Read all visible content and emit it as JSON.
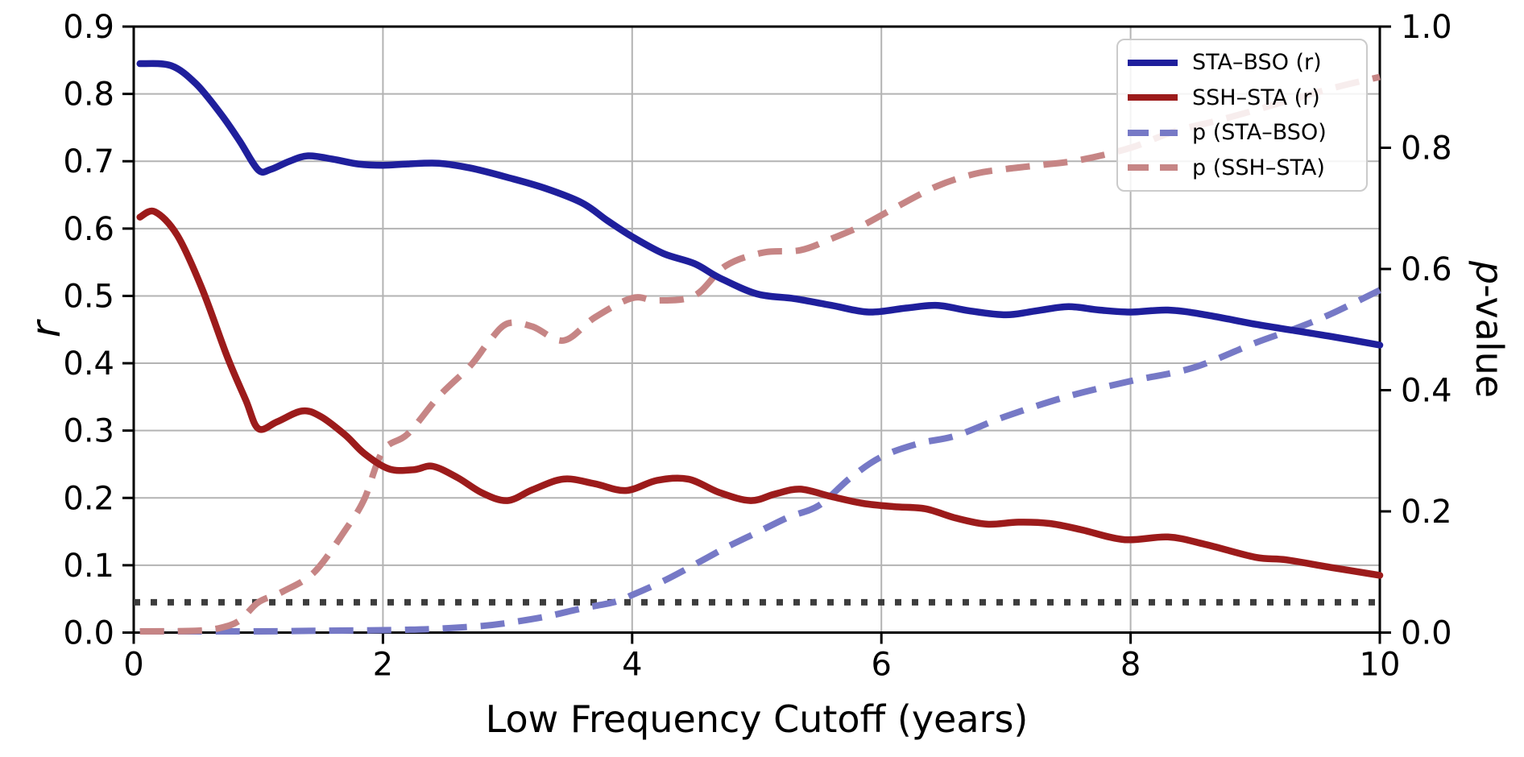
{
  "figure": {
    "xlabel": "Low Frequency Cutoff (years)",
    "ylabel_left": "r",
    "ylabel_right_prefix": "p",
    "ylabel_right_suffix": "-value",
    "background": "#ffffff"
  },
  "legend": {
    "position": "upper right",
    "items": [
      {
        "label": "STA–BSO (r)",
        "color": "#1f1f9c",
        "style": "solid"
      },
      {
        "label": "SSH–STA (r)",
        "color": "#9c1b1b",
        "style": "solid"
      },
      {
        "label": "p (STA–BSO)",
        "color": "#7679c6",
        "style": "dashed"
      },
      {
        "label": "p (SSH–STA)",
        "color": "#c68585",
        "style": "dashed"
      }
    ]
  },
  "chart_data": {
    "type": "line",
    "title": "",
    "xlabel": "Low Frequency Cutoff (years)",
    "ylabel_left": "r",
    "ylabel_right": "p-value",
    "xlim": [
      0,
      10
    ],
    "ylim_left": [
      0.0,
      0.9
    ],
    "ylim_right": [
      0.0,
      1.0
    ],
    "x_ticks": [
      0,
      2,
      4,
      6,
      8,
      10
    ],
    "x_tick_labels": [
      "0",
      "2",
      "4",
      "6",
      "8",
      "10"
    ],
    "y_ticks_left": [
      0.0,
      0.1,
      0.2,
      0.3,
      0.4,
      0.5,
      0.6,
      0.7,
      0.8,
      0.9
    ],
    "y_tick_labels_left": [
      "0.0",
      "0.1",
      "0.2",
      "0.3",
      "0.4",
      "0.5",
      "0.6",
      "0.7",
      "0.8",
      "0.9"
    ],
    "y_ticks_right": [
      0.0,
      0.2,
      0.4,
      0.6,
      0.8,
      1.0
    ],
    "y_tick_labels_right": [
      "0.0",
      "0.2",
      "0.4",
      "0.6",
      "0.8",
      "1.0"
    ],
    "grid": true,
    "grid_color": "#b3b3b3",
    "legend_position": "upper right",
    "threshold_line": {
      "axis": "right",
      "value": 0.05,
      "style": "dotted",
      "color": "#3d3d3d"
    },
    "series": [
      {
        "id": "p-sta-bso",
        "name": "p (STA–BSO)",
        "axis": "right",
        "style": "dashed",
        "color": "#7679c6",
        "points": [
          [
            0.05,
            0.002
          ],
          [
            0.5,
            0.002
          ],
          [
            1.0,
            0.002
          ],
          [
            1.5,
            0.003
          ],
          [
            2.0,
            0.004
          ],
          [
            2.4,
            0.006
          ],
          [
            2.8,
            0.011
          ],
          [
            3.0,
            0.016
          ],
          [
            3.3,
            0.026
          ],
          [
            3.6,
            0.04
          ],
          [
            3.85,
            0.05
          ],
          [
            4.0,
            0.062
          ],
          [
            4.25,
            0.085
          ],
          [
            4.5,
            0.112
          ],
          [
            4.75,
            0.14
          ],
          [
            5.0,
            0.165
          ],
          [
            5.25,
            0.19
          ],
          [
            5.5,
            0.21
          ],
          [
            5.75,
            0.255
          ],
          [
            6.0,
            0.29
          ],
          [
            6.3,
            0.312
          ],
          [
            6.6,
            0.325
          ],
          [
            7.0,
            0.357
          ],
          [
            7.5,
            0.39
          ],
          [
            8.0,
            0.415
          ],
          [
            8.5,
            0.437
          ],
          [
            9.0,
            0.478
          ],
          [
            9.3,
            0.5
          ],
          [
            9.6,
            0.525
          ],
          [
            10.0,
            0.565
          ]
        ]
      },
      {
        "id": "p-ssh-sta",
        "name": "p (SSH–STA)",
        "axis": "right",
        "style": "dashed",
        "color": "#c68585",
        "points": [
          [
            0.05,
            0.002
          ],
          [
            0.5,
            0.003
          ],
          [
            0.7,
            0.008
          ],
          [
            0.85,
            0.02
          ],
          [
            1.0,
            0.05
          ],
          [
            1.2,
            0.068
          ],
          [
            1.45,
            0.1
          ],
          [
            1.7,
            0.17
          ],
          [
            1.85,
            0.22
          ],
          [
            2.0,
            0.3
          ],
          [
            2.2,
            0.328
          ],
          [
            2.45,
            0.39
          ],
          [
            2.7,
            0.44
          ],
          [
            2.85,
            0.48
          ],
          [
            3.0,
            0.51
          ],
          [
            3.2,
            0.505
          ],
          [
            3.45,
            0.482
          ],
          [
            3.7,
            0.52
          ],
          [
            4.0,
            0.552
          ],
          [
            4.2,
            0.548
          ],
          [
            4.5,
            0.556
          ],
          [
            4.75,
            0.605
          ],
          [
            5.05,
            0.627
          ],
          [
            5.35,
            0.631
          ],
          [
            5.6,
            0.65
          ],
          [
            5.85,
            0.672
          ],
          [
            6.1,
            0.7
          ],
          [
            6.45,
            0.737
          ],
          [
            6.75,
            0.757
          ],
          [
            7.0,
            0.765
          ],
          [
            7.3,
            0.772
          ],
          [
            7.6,
            0.78
          ],
          [
            8.0,
            0.8
          ],
          [
            8.35,
            0.827
          ],
          [
            8.7,
            0.845
          ],
          [
            9.0,
            0.862
          ],
          [
            9.3,
            0.88
          ],
          [
            9.65,
            0.9
          ],
          [
            10.0,
            0.917
          ]
        ]
      },
      {
        "id": "sta-bso-r",
        "name": "STA–BSO (r)",
        "axis": "left",
        "style": "solid",
        "color": "#1f1f9c",
        "points": [
          [
            0.05,
            0.845
          ],
          [
            0.3,
            0.842
          ],
          [
            0.5,
            0.815
          ],
          [
            0.7,
            0.77
          ],
          [
            0.85,
            0.73
          ],
          [
            1.0,
            0.687
          ],
          [
            1.1,
            0.688
          ],
          [
            1.25,
            0.7
          ],
          [
            1.4,
            0.708
          ],
          [
            1.6,
            0.703
          ],
          [
            1.8,
            0.696
          ],
          [
            2.0,
            0.694
          ],
          [
            2.2,
            0.696
          ],
          [
            2.45,
            0.697
          ],
          [
            2.7,
            0.69
          ],
          [
            3.0,
            0.676
          ],
          [
            3.3,
            0.66
          ],
          [
            3.6,
            0.638
          ],
          [
            3.8,
            0.612
          ],
          [
            4.0,
            0.588
          ],
          [
            4.25,
            0.563
          ],
          [
            4.5,
            0.548
          ],
          [
            4.7,
            0.527
          ],
          [
            5.0,
            0.503
          ],
          [
            5.3,
            0.496
          ],
          [
            5.6,
            0.486
          ],
          [
            5.9,
            0.476
          ],
          [
            6.2,
            0.482
          ],
          [
            6.45,
            0.486
          ],
          [
            6.7,
            0.478
          ],
          [
            7.0,
            0.472
          ],
          [
            7.25,
            0.478
          ],
          [
            7.5,
            0.484
          ],
          [
            7.75,
            0.479
          ],
          [
            8.0,
            0.476
          ],
          [
            8.3,
            0.479
          ],
          [
            8.6,
            0.472
          ],
          [
            9.0,
            0.458
          ],
          [
            9.3,
            0.449
          ],
          [
            9.6,
            0.44
          ],
          [
            10.0,
            0.427
          ]
        ]
      },
      {
        "id": "ssh-sta-r",
        "name": "SSH–STA (r)",
        "axis": "left",
        "style": "solid",
        "color": "#9c1b1b",
        "points": [
          [
            0.05,
            0.617
          ],
          [
            0.17,
            0.625
          ],
          [
            0.35,
            0.59
          ],
          [
            0.55,
            0.51
          ],
          [
            0.75,
            0.41
          ],
          [
            0.9,
            0.345
          ],
          [
            1.0,
            0.303
          ],
          [
            1.15,
            0.313
          ],
          [
            1.35,
            0.329
          ],
          [
            1.5,
            0.321
          ],
          [
            1.7,
            0.293
          ],
          [
            1.85,
            0.266
          ],
          [
            2.05,
            0.243
          ],
          [
            2.25,
            0.242
          ],
          [
            2.4,
            0.247
          ],
          [
            2.6,
            0.23
          ],
          [
            2.8,
            0.207
          ],
          [
            3.0,
            0.196
          ],
          [
            3.2,
            0.212
          ],
          [
            3.45,
            0.228
          ],
          [
            3.7,
            0.221
          ],
          [
            3.95,
            0.211
          ],
          [
            4.2,
            0.226
          ],
          [
            4.45,
            0.228
          ],
          [
            4.7,
            0.208
          ],
          [
            4.95,
            0.196
          ],
          [
            5.15,
            0.206
          ],
          [
            5.35,
            0.213
          ],
          [
            5.6,
            0.202
          ],
          [
            5.85,
            0.192
          ],
          [
            6.1,
            0.187
          ],
          [
            6.35,
            0.184
          ],
          [
            6.6,
            0.17
          ],
          [
            6.85,
            0.161
          ],
          [
            7.1,
            0.164
          ],
          [
            7.35,
            0.162
          ],
          [
            7.6,
            0.153
          ],
          [
            7.95,
            0.138
          ],
          [
            8.3,
            0.142
          ],
          [
            8.6,
            0.131
          ],
          [
            9.0,
            0.112
          ],
          [
            9.25,
            0.108
          ],
          [
            9.6,
            0.097
          ],
          [
            10.0,
            0.085
          ]
        ]
      }
    ]
  }
}
